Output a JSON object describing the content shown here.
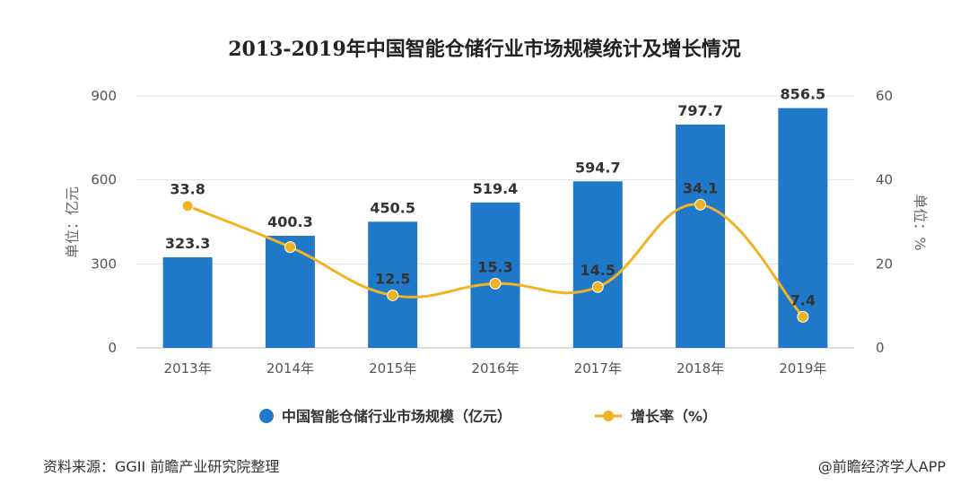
{
  "chart_data": {
    "type": "bar+line",
    "title": "2013-2019年中国智能仓储行业市场规模统计及增长情况",
    "categories": [
      "2013年",
      "2014年",
      "2015年",
      "2016年",
      "2017年",
      "2018年",
      "2019年"
    ],
    "series": [
      {
        "name": "中国智能仓储行业市场规模（亿元）",
        "type": "bar",
        "axis": "left",
        "color": "#1f78c8",
        "values": [
          323.3,
          400.3,
          450.5,
          519.4,
          594.7,
          797.7,
          856.5
        ],
        "labels": [
          "323.3",
          "400.3",
          "450.5",
          "519.4",
          "594.7",
          "797.7",
          "856.5"
        ]
      },
      {
        "name": "增长率（%）",
        "type": "line",
        "axis": "right",
        "color": "#f0b323",
        "values": [
          33.8,
          24,
          12.5,
          15.3,
          14.5,
          34.1,
          7.4
        ],
        "labels": [
          "33.8",
          "",
          "12.5",
          "15.3",
          "14.5",
          "34.1",
          "7.4"
        ]
      }
    ],
    "y_left": {
      "label": "单位：亿元",
      "ylim": [
        0,
        900
      ],
      "ticks": [
        "0",
        "300",
        "600",
        "900"
      ]
    },
    "y_right": {
      "label": "单位：%",
      "ylim": [
        0,
        60
      ],
      "ticks": [
        "0",
        "20",
        "40",
        "60"
      ]
    },
    "legend_position": "bottom-center",
    "grid": true
  },
  "footer": {
    "source": "资料来源：GGII 前瞻产业研究院整理",
    "credit": "@前瞻经济学人APP"
  }
}
